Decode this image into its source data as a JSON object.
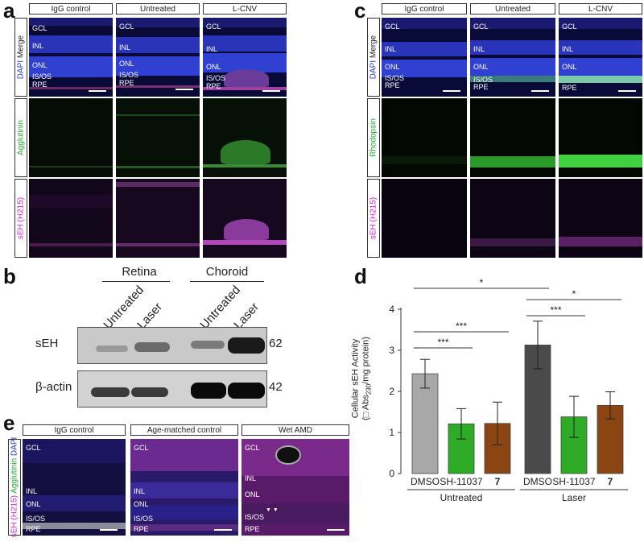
{
  "panels": {
    "a": {
      "label": "a",
      "columns": [
        "IgG control",
        "Untreated",
        "L-CNV"
      ],
      "rows": [
        {
          "primary": "DAPI",
          "secondary": "Merge"
        },
        {
          "primary": "Agglutinin"
        },
        {
          "primary": "sEH (H215)"
        }
      ],
      "layer_labels": {
        "col0": [
          "GCL",
          "INL",
          "ONL",
          "IS/OS",
          "RPE"
        ],
        "col1": [
          "GCL",
          "INL",
          "ONL",
          "IS/OS",
          "RPE"
        ],
        "col2": [
          "GCL",
          "INL",
          "ONL",
          "IS/OS",
          "RPE"
        ]
      }
    },
    "c": {
      "label": "c",
      "columns": [
        "IgG control",
        "Untreated",
        "L-CNV"
      ],
      "rows": [
        {
          "primary": "DAPI",
          "secondary": "Merge"
        },
        {
          "primary": "Rhodopsin"
        },
        {
          "primary": "sEH (H215)"
        }
      ],
      "layer_labels": [
        "GCL",
        "INL",
        "ONL",
        "IS/OS",
        "RPE"
      ]
    },
    "b": {
      "label": "b",
      "groups": [
        "Retina",
        "Choroid"
      ],
      "lanes": [
        "Untreated",
        "Laser",
        "Untreated",
        "Laser"
      ],
      "bands": [
        {
          "name": "sEH",
          "kda": "62"
        },
        {
          "name": "β-actin",
          "kda": "42"
        }
      ]
    },
    "e": {
      "label": "e",
      "columns": [
        "IgG control",
        "Age-matched control",
        "Wet AMD"
      ],
      "row_label": {
        "part1": "sEH (H215)",
        "part2": "Agglutinin",
        "part3": "DAPI"
      },
      "layer_labels": [
        "GCL",
        "INL",
        "ONL",
        "IS/OS",
        "RPE"
      ],
      "arrowheads": "▼ ▼"
    },
    "d": {
      "label": "d",
      "ylabel_line1": "Cellular sEH Activity",
      "ylabel_line2": "(□ Abs",
      "ylabel_sub": "230",
      "ylabel_line2_end": "/mg protein)"
    }
  },
  "chart_data": {
    "type": "bar",
    "categories": [
      "DMSO",
      "SH-11037",
      "7",
      "DMSO",
      "SH-11037",
      "7"
    ],
    "groups": [
      "Untreated",
      "Laser"
    ],
    "values": [
      2.43,
      1.21,
      1.22,
      3.13,
      1.38,
      1.66
    ],
    "errors": [
      0.35,
      0.37,
      0.52,
      0.58,
      0.5,
      0.33
    ],
    "colors": [
      "#a8a8a8",
      "#2eab27",
      "#8b4513",
      "#4a4a4a",
      "#2eab27",
      "#8b4513"
    ],
    "ylabel": "Cellular sEH Activity (□ Abs230/mg protein)",
    "ylim": [
      0,
      4
    ],
    "yticks": [
      0,
      1,
      2,
      3,
      4
    ],
    "significance": [
      "*",
      "***",
      "***",
      "*",
      "***"
    ]
  }
}
